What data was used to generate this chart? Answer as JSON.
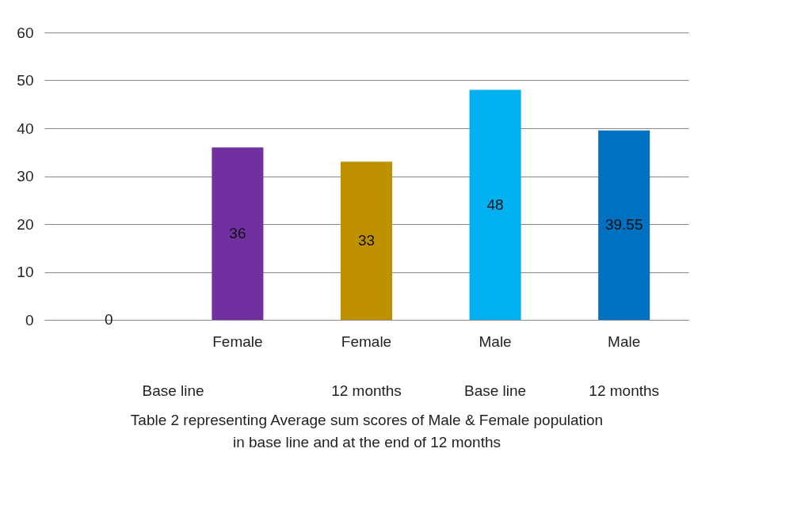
{
  "chart_data": {
    "type": "bar",
    "categories": [
      null,
      "Female",
      "Female",
      "Male",
      "Male"
    ],
    "values": [
      0,
      36,
      33,
      48,
      39.55
    ],
    "colors": [
      "#4472c4",
      "#7030a0",
      "#bf9000",
      "#00b0f0",
      "#0070c0"
    ],
    "ylim": [
      0,
      60
    ],
    "yticks": [
      0,
      10,
      20,
      30,
      40,
      50,
      60
    ],
    "grid": "y",
    "legend": false,
    "data_labels": true,
    "xlabel": "Table 2 representing Average sum scores of Male & Female population in base line and at the end of 12 months",
    "annotations": [
      "Base line",
      "12 months",
      "Base line",
      "12 months"
    ]
  }
}
